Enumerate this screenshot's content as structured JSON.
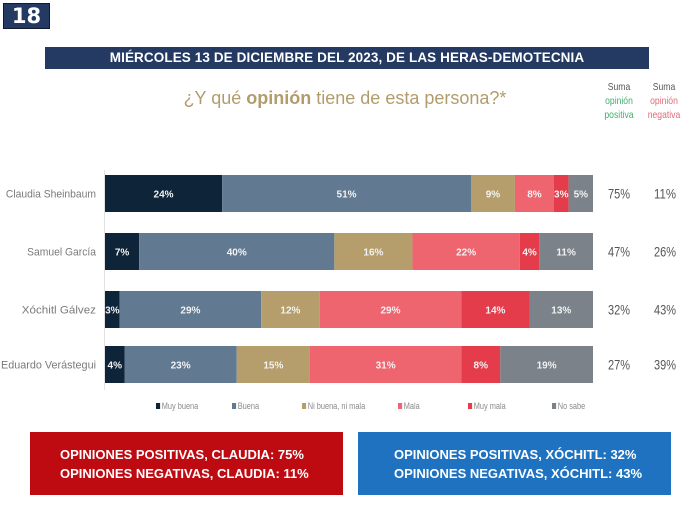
{
  "page_number": "18",
  "banner": "MIÉRCOLES 13 DE DICIEMBRE DEL 2023, DE LAS HERAS-DEMOTECNIA",
  "question": {
    "prefix": "¿Y qué ",
    "bold": "opinión",
    "suffix": " tiene de esta persona?*"
  },
  "suma_positiva": {
    "line1": "Suma",
    "line2": "opinión",
    "line3": "positiva"
  },
  "suma_negativa": {
    "line1": "Suma",
    "line2": "opinión",
    "line3": "negativa"
  },
  "colors": {
    "muy_buena": "#0e2438",
    "buena": "#617a92",
    "ni_buena_ni_mala": "#b59e6c",
    "mala": "#ee6570",
    "muy_mala": "#e43c4b",
    "no_sabe": "#7b8289",
    "banner": "#253a62",
    "claudia_box": "#be0a11",
    "xochitl_box": "#1f72bf"
  },
  "chart_data": {
    "type": "bar",
    "orientation": "horizontal-stacked-100",
    "title": "¿Y qué opinión tiene de esta persona?*",
    "categories": [
      "Claudia Sheinbaum",
      "Samuel García",
      "Xóchitl Gálvez",
      "Eduardo Verástegui"
    ],
    "series": [
      {
        "name": "Muy buena",
        "key": "muy_buena",
        "values": [
          24,
          7,
          3,
          4
        ]
      },
      {
        "name": "Buena",
        "key": "buena",
        "values": [
          51,
          40,
          29,
          23
        ]
      },
      {
        "name": "Ni buena, ni mala",
        "key": "ni_buena_ni_mala",
        "values": [
          9,
          16,
          12,
          15
        ]
      },
      {
        "name": "Mala",
        "key": "mala",
        "values": [
          8,
          22,
          29,
          31
        ]
      },
      {
        "name": "Muy mala",
        "key": "muy_mala",
        "values": [
          3,
          4,
          14,
          8
        ]
      },
      {
        "name": "No sabe",
        "key": "no_sabe",
        "values": [
          5,
          11,
          13,
          19
        ]
      }
    ],
    "suma_positiva": [
      75,
      47,
      32,
      27
    ],
    "suma_negativa": [
      11,
      26,
      43,
      39
    ],
    "xlim": [
      0,
      100
    ],
    "unit": "%",
    "legend_position": "bottom",
    "grid": false
  },
  "legend": [
    {
      "label": "Muy buena",
      "key": "muy_buena"
    },
    {
      "label": "Buena",
      "key": "buena"
    },
    {
      "label": "Ni buena, ni mala",
      "key": "ni_buena_ni_mala"
    },
    {
      "label": "Mala",
      "key": "mala"
    },
    {
      "label": "Muy mala",
      "key": "muy_mala"
    },
    {
      "label": "No sabe",
      "key": "no_sabe"
    }
  ],
  "summary_boxes": {
    "claudia": {
      "line1": "OPINIONES POSITIVAS, CLAUDIA: 75%",
      "line2": "OPINIONES NEGATIVAS, CLAUDIA: 11%"
    },
    "xochitl": {
      "line1": "OPINIONES POSITIVAS, XÓCHITL: 32%",
      "line2": "OPINIONES NEGATIVAS, XÓCHITL: 43%"
    }
  }
}
